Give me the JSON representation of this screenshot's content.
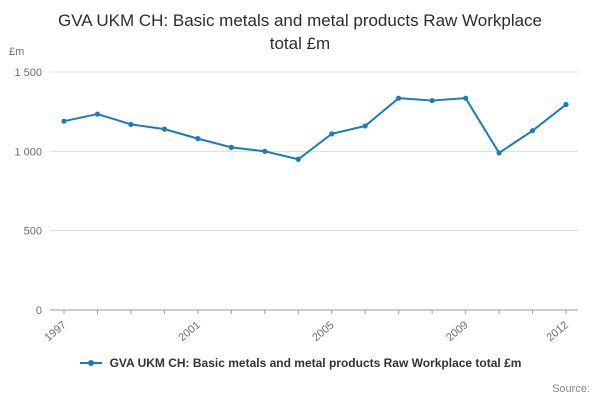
{
  "chart_data": {
    "type": "line",
    "title": "GVA UKM CH: Basic metals and metal products Raw Workplace total £m",
    "ylabel": "£m",
    "xlabel": "",
    "x": [
      1997,
      1998,
      1999,
      2000,
      2001,
      2002,
      2003,
      2004,
      2005,
      2006,
      2007,
      2008,
      2009,
      2010,
      2011,
      2012
    ],
    "series": [
      {
        "name": "GVA UKM CH: Basic metals and metal products Raw Workplace total £m",
        "values": [
          1190,
          1235,
          1170,
          1140,
          1080,
          1025,
          1000,
          950,
          1110,
          1160,
          1335,
          1320,
          1335,
          990,
          1130,
          1295
        ]
      }
    ],
    "ylim": [
      0,
      1500
    ],
    "yticks": [
      0,
      500,
      1000,
      1500
    ],
    "ytick_labels": [
      "0",
      "500",
      "1 000",
      "1 500"
    ],
    "xtick_labels": [
      "1997",
      "2001",
      "2005",
      "2009",
      "2012"
    ],
    "grid": true,
    "legend_position": "bottom",
    "legend_label": "GVA UKM CH: Basic metals and metal products Raw Workplace total £m",
    "line_color": "#1b7cb8",
    "grid_color": "#dcdcdc",
    "axis_color": "#9b9b9b",
    "source_label": "Source:"
  }
}
